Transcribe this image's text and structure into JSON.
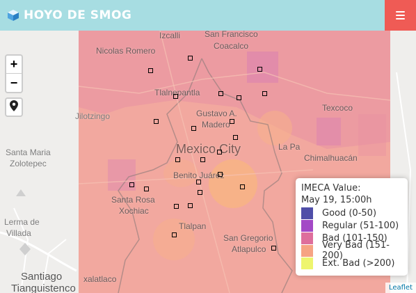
{
  "header": {
    "title": "HOYO DE SMOG",
    "brand_icon": "cube-icon",
    "menu_icon": "hamburger-menu-icon",
    "background": "#a7dde2",
    "menu_background": "#ef5b55"
  },
  "map": {
    "controls": {
      "zoom_in_label": "+",
      "zoom_out_label": "−",
      "locate_icon": "map-marker-icon"
    },
    "places": {
      "izcalli": "Izcalli",
      "san_francisco": "San Francisco",
      "coacalco": "Coacalco",
      "nicolas_romero": "Nicolas Romero",
      "tlalnepantla": "Tlalnepantla",
      "texcoco": "Texcoco",
      "jilotzingo": "Jilotzingo",
      "gustavo_a": "Gustavo A.",
      "madero": "Madero",
      "chimalhuacan": "Chimalhuacán",
      "santa_maria": "Santa Maria",
      "zolotepec": "Zolotepec",
      "mexico_city": "Mexico City",
      "la_paz": "La Pa",
      "benito_juarez": "Benito Juárez",
      "santa_rosa": "Santa Rosa",
      "xochiac": "Xochiac",
      "lerma": "Lerma de",
      "villada": "Villada",
      "tlalpan": "Tlalpan",
      "san_gregorio": "San Gregorio",
      "atlapulco": "Atlapulco",
      "santiago": "Santiago",
      "tianguistenco": "Tianguistenco",
      "xalatlaco": "xalatlaco"
    },
    "attribution": "Leaflet"
  },
  "legend": {
    "title": "IMECA Value:",
    "subtitle": "May 19, 15:00h",
    "items": [
      {
        "label": "Good (0-50)",
        "color": "#4f4ea8"
      },
      {
        "label": "Regular (51-100)",
        "color": "#a349c6"
      },
      {
        "label": "Bad (101-150)",
        "color": "#de6e9c"
      },
      {
        "label": "Very Bad (151-200)",
        "color": "#f6a383"
      },
      {
        "label": "Ext. Bad (>200)",
        "color": "#eef56e"
      }
    ]
  }
}
